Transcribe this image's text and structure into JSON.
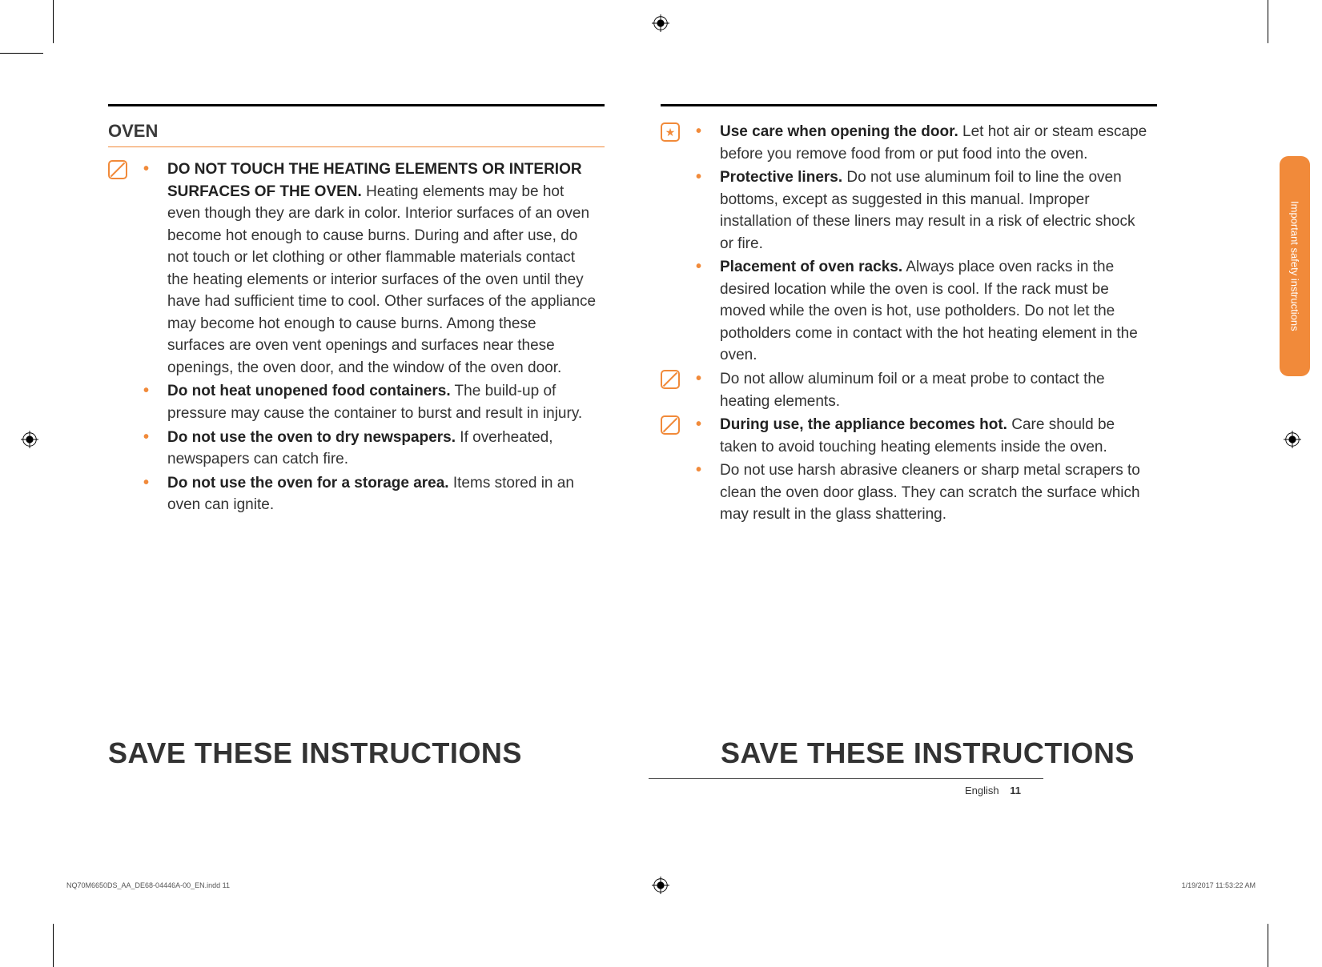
{
  "section_title": "OVEN",
  "left_items": [
    {
      "icon": "slash",
      "bold": "DO NOT TOUCH THE HEATING ELEMENTS OR INTERIOR SURFACES OF THE OVEN.",
      "text": " Heating elements may be hot even though they are dark in color. Interior surfaces of an oven become hot enough to cause burns. During and after use, do not touch or let clothing or other flammable materials contact the heating elements or interior surfaces of the oven until they have had sufficient time to cool. Other surfaces of the appliance may become hot enough to cause burns. Among these surfaces are oven vent openings and surfaces near these openings, the oven door, and the window of the oven door."
    },
    {
      "icon": "",
      "bold": "Do not heat unopened food containers.",
      "text": " The build-up of pressure may cause the container to burst and result in injury."
    },
    {
      "icon": "",
      "bold": "Do not use the oven to dry newspapers.",
      "text": " If overheated, newspapers can catch fire."
    },
    {
      "icon": "",
      "bold": "Do not use the oven for a storage area.",
      "text": " Items stored in an oven can ignite."
    }
  ],
  "right_items": [
    {
      "icon": "star",
      "bold": "Use care when opening the door.",
      "text": " Let hot air or steam escape before you remove food from or put food into the oven."
    },
    {
      "icon": "",
      "bold": "Protective liners.",
      "text": " Do not use aluminum foil to line the oven bottoms, except as suggested in this manual. Improper installation of these liners may result in a risk of electric shock or fire."
    },
    {
      "icon": "",
      "bold": "Placement of oven racks.",
      "text": " Always place oven racks in the desired location while the oven is cool. If the rack must be moved while the oven is hot, use potholders. Do not let the potholders come in contact with the hot heating element in the oven."
    },
    {
      "icon": "slash",
      "bold": "",
      "text": "Do not allow aluminum foil or a meat probe to contact the heating elements."
    },
    {
      "icon": "slash",
      "bold": "During use, the appliance becomes hot.",
      "text": " Care should be taken to avoid touching heating elements inside the oven."
    },
    {
      "icon": "",
      "bold": "",
      "text": "Do not use harsh abrasive cleaners or sharp metal scrapers to clean the oven door glass. They can scratch the surface which may result in the glass shattering."
    }
  ],
  "footer_title": "SAVE THESE INSTRUCTIONS",
  "page_lang": "English",
  "page_num": "11",
  "side_tab": "Important safety instructions",
  "indd_file": "NQ70M6650DS_AA_DE68-04446A-00_EN.indd   11",
  "indd_date": "1/19/2017   11:53:22 AM",
  "colors": {
    "accent": "#f18a3a",
    "text": "#333333",
    "bold_text": "#222222"
  }
}
